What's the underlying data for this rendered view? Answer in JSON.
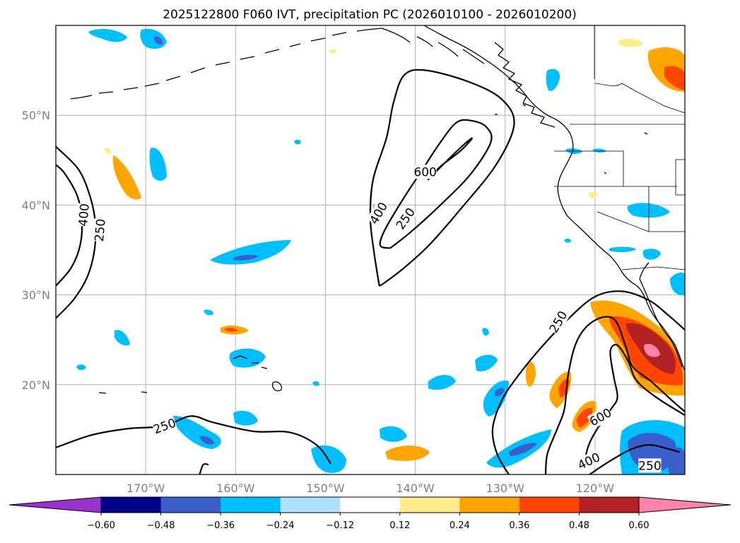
{
  "chart_data": {
    "type": "contourf-map",
    "title": "2025122800 F060 IVT, precipitation PC (2026010100 - 2026010200)",
    "xlim": [
      -180,
      -110
    ],
    "ylim": [
      10,
      60
    ],
    "lat_ticks": [
      {
        "value": 20,
        "label": "20°N"
      },
      {
        "value": 30,
        "label": "30°N"
      },
      {
        "value": 40,
        "label": "40°N"
      },
      {
        "value": 50,
        "label": "50°N"
      }
    ],
    "lon_ticks": [
      {
        "value": -170,
        "label": "170°W"
      },
      {
        "value": -160,
        "label": "160°W"
      },
      {
        "value": -150,
        "label": "150°W"
      },
      {
        "value": -140,
        "label": "140°W"
      },
      {
        "value": -130,
        "label": "130°W"
      },
      {
        "value": -120,
        "label": "120°W"
      }
    ],
    "colorbar": {
      "levels": [
        -0.72,
        -0.6,
        -0.48,
        -0.36,
        -0.24,
        -0.12,
        0.12,
        0.24,
        0.36,
        0.48,
        0.6,
        0.72
      ],
      "tick_labels": [
        "−0.60",
        "−0.48",
        "−0.36",
        "−0.24",
        "−0.12",
        "0.12",
        "0.24",
        "0.36",
        "0.48",
        "0.60"
      ],
      "tick_values": [
        -0.6,
        -0.48,
        -0.36,
        -0.24,
        -0.12,
        0.12,
        0.24,
        0.36,
        0.48,
        0.6
      ],
      "colors": [
        "#9932cc",
        "#00008b",
        "#3a5fcd",
        "#00bfff",
        "#b0e2ff",
        "#ffffff",
        "#ffec8b",
        "#ffa500",
        "#ff4500",
        "#b22222",
        "#ff82ab"
      ]
    },
    "ivt_contours": {
      "levels": [
        250,
        400,
        600
      ],
      "labels": [
        {
          "text": "400",
          "lon": -176.9,
          "lat": 38.9,
          "rot": -85
        },
        {
          "text": "250",
          "lon": -175.1,
          "lat": 37.2,
          "rot": -85
        },
        {
          "text": "600",
          "lon": -138.9,
          "lat": 43.7,
          "rot": 0
        },
        {
          "text": "400",
          "lon": -144.1,
          "lat": 39.1,
          "rot": -60
        },
        {
          "text": "250",
          "lon": -141.1,
          "lat": 38.5,
          "rot": -55
        },
        {
          "text": "250",
          "lon": -124.1,
          "lat": 27.0,
          "rot": -60
        },
        {
          "text": "250",
          "lon": -167.9,
          "lat": 15.4,
          "rot": -20
        },
        {
          "text": "600",
          "lon": -119.4,
          "lat": 16.4,
          "rot": -30
        },
        {
          "text": "400",
          "lon": -120.7,
          "lat": 11.5,
          "rot": -25
        },
        {
          "text": "250",
          "lon": -113.9,
          "lat": 11.0,
          "rot": 0
        }
      ],
      "lines": [
        {
          "level": 250,
          "points": [
            [
              -180,
              27.4
            ],
            [
              -178,
              29.5
            ],
            [
              -176.5,
              32
            ],
            [
              -175.7,
              35
            ],
            [
              -175.6,
              38
            ],
            [
              -176.2,
              41
            ],
            [
              -177.5,
              44
            ],
            [
              -180,
              46.5
            ]
          ]
        },
        {
          "level": 400,
          "points": [
            [
              -180,
              31
            ],
            [
              -178.3,
              33
            ],
            [
              -177.3,
              35.5
            ],
            [
              -177.1,
              38.3
            ],
            [
              -177.6,
              41
            ],
            [
              -179,
              43.5
            ],
            [
              -180,
              44.5
            ]
          ]
        },
        {
          "level": 250,
          "points": [
            [
              -180,
              13
            ],
            [
              -176,
              14.4
            ],
            [
              -172,
              15.1
            ],
            [
              -168,
              15.4
            ],
            [
              -165,
              16.5
            ],
            [
              -162.5,
              15.8
            ],
            [
              -158,
              14.8
            ],
            [
              -154,
              14.7
            ],
            [
              -151,
              13.3
            ],
            [
              -149.4,
              11.2
            ]
          ]
        },
        {
          "level": 250,
          "points": [
            [
              -164,
              10
            ],
            [
              -163.6,
              11.1
            ],
            [
              -163,
              11.1
            ]
          ]
        },
        {
          "level": 250,
          "points": [
            [
              -144,
              31
            ],
            [
              -143.5,
              31.3
            ],
            [
              -141.5,
              32.8
            ],
            [
              -138.5,
              35.5
            ],
            [
              -135,
              39.5
            ],
            [
              -131,
              44.5
            ],
            [
              -129,
              49
            ],
            [
              -130.4,
              51.8
            ],
            [
              -134,
              53.7
            ],
            [
              -138.8,
              55
            ],
            [
              -141.2,
              54.5
            ],
            [
              -142.4,
              51.5
            ],
            [
              -143.2,
              47.5
            ],
            [
              -144.7,
              42.8
            ],
            [
              -145,
              38.5
            ],
            [
              -144.6,
              34.8
            ],
            [
              -144,
              31
            ]
          ]
        },
        {
          "level": 400,
          "points": [
            [
              -142.8,
              35.2
            ],
            [
              -140.5,
              37
            ],
            [
              -137,
              40.2
            ],
            [
              -133.8,
              43.5
            ],
            [
              -131.6,
              47
            ],
            [
              -132.1,
              48.7
            ],
            [
              -133.8,
              49.4
            ],
            [
              -135.4,
              49.2
            ],
            [
              -137.2,
              47
            ],
            [
              -139.3,
              43.8
            ],
            [
              -141.4,
              40.6
            ],
            [
              -143.4,
              37.2
            ],
            [
              -143.9,
              35.5
            ],
            [
              -142.8,
              35.2
            ]
          ]
        },
        {
          "level": 600,
          "points": [
            [
              -138.6,
              42.8
            ],
            [
              -136.3,
              45.1
            ],
            [
              -134.4,
              46.9
            ],
            [
              -133.7,
              47.4
            ],
            [
              -135,
              46
            ],
            [
              -137.2,
              44.3
            ],
            [
              -138.6,
              42.8
            ]
          ]
        },
        {
          "level": 250,
          "points": [
            [
              -129.6,
              10
            ],
            [
              -130.9,
              12.3
            ],
            [
              -131.4,
              15
            ],
            [
              -130.5,
              18
            ],
            [
              -129,
              20.4
            ],
            [
              -126.2,
              23.9
            ],
            [
              -123,
              27.3
            ],
            [
              -120,
              29.8
            ],
            [
              -117,
              30.4
            ],
            [
              -114,
              29.4
            ],
            [
              -111.8,
              27.7
            ],
            [
              -110,
              26.1
            ]
          ]
        },
        {
          "level": 400,
          "points": [
            [
              -125.5,
              10
            ],
            [
              -125.3,
              12.3
            ],
            [
              -124.2,
              15.1
            ],
            [
              -123.4,
              17.3
            ],
            [
              -123,
              21
            ],
            [
              -122.2,
              24.4
            ],
            [
              -121,
              26.4
            ],
            [
              -119.2,
              27.5
            ],
            [
              -117.7,
              27.1
            ],
            [
              -116.6,
              24.3
            ],
            [
              -115.8,
              22
            ],
            [
              -113.8,
              20.4
            ],
            [
              -111.5,
              18.3
            ],
            [
              -110,
              17
            ]
          ]
        },
        {
          "level": 600,
          "points": [
            [
              -121.3,
              10.5
            ],
            [
              -120.8,
              13
            ],
            [
              -119.8,
              15
            ],
            [
              -118.2,
              17.3
            ],
            [
              -117.5,
              18.6
            ],
            [
              -117.9,
              20.8
            ],
            [
              -118.3,
              23.7
            ],
            [
              -117.5,
              24.4
            ],
            [
              -116.3,
              22.6
            ],
            [
              -115.6,
              20.8
            ],
            [
              -114.5,
              19.6
            ],
            [
              -112.6,
              18.2
            ],
            [
              -110,
              16.6
            ]
          ]
        },
        {
          "level": 250,
          "points": [
            [
              -120.6,
              10
            ],
            [
              -118.5,
              11.4
            ],
            [
              -116,
              12.8
            ],
            [
              -114,
              13.3
            ],
            [
              -112,
              12.9
            ],
            [
              -110.6,
              12.5
            ]
          ]
        }
      ]
    },
    "precip_regions": [
      {
        "sign": "positive",
        "peak": 0.72,
        "lon": -115.5,
        "lat": 24.0
      },
      {
        "sign": "positive",
        "peak": 0.48,
        "lon": -113.0,
        "lat": 55.0
      },
      {
        "sign": "positive",
        "peak": 0.36,
        "lon": -161.5,
        "lat": 26.0
      },
      {
        "sign": "positive",
        "peak": 0.36,
        "lon": -173.0,
        "lat": 43.0
      },
      {
        "sign": "positive",
        "peak": 0.36,
        "lon": -122.5,
        "lat": 16.5
      },
      {
        "sign": "positive",
        "peak": 0.36,
        "lon": -126.0,
        "lat": 20.0
      },
      {
        "sign": "positive",
        "peak": 0.36,
        "lon": -139.5,
        "lat": 12.0
      },
      {
        "sign": "negative",
        "peak": -0.48,
        "lon": -112.5,
        "lat": 12.5
      },
      {
        "sign": "negative",
        "peak": -0.36,
        "lon": -158.0,
        "lat": 34.5
      },
      {
        "sign": "negative",
        "peak": -0.36,
        "lon": -169.5,
        "lat": 44.5
      },
      {
        "sign": "negative",
        "peak": -0.36,
        "lon": -163.5,
        "lat": 14.5
      },
      {
        "sign": "negative",
        "peak": -0.36,
        "lon": -129.5,
        "lat": 19.5
      },
      {
        "sign": "negative",
        "peak": -0.36,
        "lon": -130.0,
        "lat": 12.5
      },
      {
        "sign": "negative",
        "peak": -0.36,
        "lon": -148.5,
        "lat": 11.5
      }
    ]
  }
}
